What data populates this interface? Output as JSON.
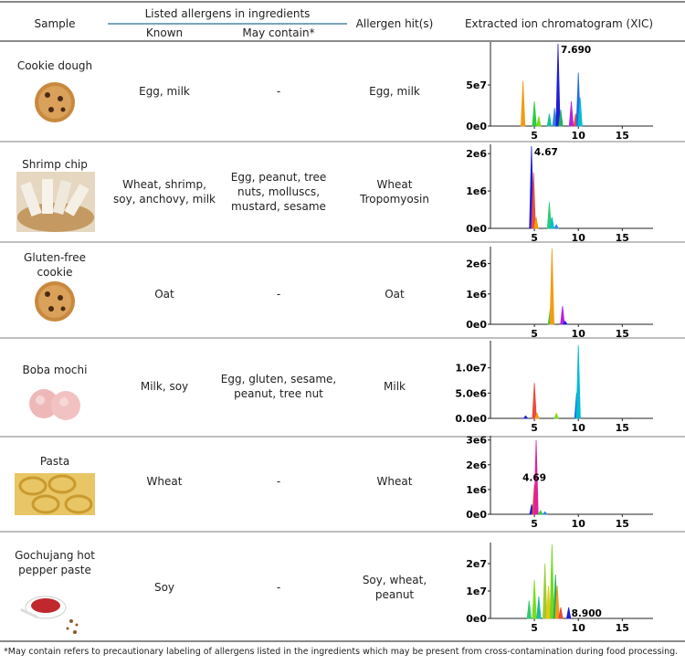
{
  "header": {
    "sample": "Sample",
    "listed": "Listed allergens in ingredients",
    "known": "Known",
    "may": "May contain*",
    "hit": "Allergen hit(s)",
    "xic": "Extracted ion chromatogram (XIC)"
  },
  "rows": [
    {
      "sample": "Cookie dough",
      "known": "Egg, milk",
      "may": "-",
      "hit": "Egg, milk",
      "xic": {
        "type": "chromatogram",
        "xlim": [
          0,
          18.5
        ],
        "xticks": [
          5,
          10,
          15
        ],
        "ylim": [
          0,
          100000000
        ],
        "yticks": [
          {
            "value": 0,
            "label": "0e0"
          },
          {
            "value": 50000000,
            "label": "5e7"
          }
        ],
        "peaks": [
          {
            "x": 3.7,
            "height": 55000000,
            "color": "#f39c12"
          },
          {
            "x": 5.0,
            "height": 30000000,
            "color": "#2ecc40"
          },
          {
            "x": 5.5,
            "height": 12000000,
            "color": "#7ddc1f"
          },
          {
            "x": 6.7,
            "height": 15000000,
            "color": "#1abc9c"
          },
          {
            "x": 7.3,
            "height": 22000000,
            "color": "#2e86de"
          },
          {
            "x": 7.69,
            "height": 100000000,
            "color": "#1f1fd6"
          },
          {
            "x": 8.0,
            "height": 20000000,
            "color": "#27ae60"
          },
          {
            "x": 9.2,
            "height": 30000000,
            "color": "#b620e0"
          },
          {
            "x": 9.7,
            "height": 15000000,
            "color": "#e74c3c"
          },
          {
            "x": 10.0,
            "height": 65000000,
            "color": "#1e6fe0"
          },
          {
            "x": 10.2,
            "height": 35000000,
            "color": "#00bcd4"
          }
        ],
        "annotations": [
          {
            "value": 7.69,
            "label": "7.690"
          }
        ]
      }
    },
    {
      "sample": "Shrimp chip",
      "known": "Wheat, shrimp, soy, anchovy, milk",
      "may": "Egg, peanut, tree nuts, molluscs, mustard, sesame",
      "hit": "Wheat Tropomyosin",
      "xic": {
        "type": "chromatogram",
        "xlim": [
          0,
          18.5
        ],
        "xticks": [
          5,
          10,
          15
        ],
        "ylim": [
          0,
          2200000
        ],
        "yticks": [
          {
            "value": 0,
            "label": "0e0"
          },
          {
            "value": 1000000,
            "label": "1e6"
          },
          {
            "value": 2000000,
            "label": "2e6"
          }
        ],
        "peaks": [
          {
            "x": 4.67,
            "height": 2200000,
            "color": "#1f1fd6"
          },
          {
            "x": 4.9,
            "height": 1500000,
            "color": "#e74c3c"
          },
          {
            "x": 5.2,
            "height": 300000,
            "color": "#f39c12"
          },
          {
            "x": 6.7,
            "height": 700000,
            "color": "#2ecc71"
          },
          {
            "x": 7.0,
            "height": 300000,
            "color": "#00bcd4"
          },
          {
            "x": 7.5,
            "height": 100000,
            "color": "#2e86de"
          }
        ],
        "annotations": [
          {
            "value": 4.67,
            "label": "4.67"
          }
        ]
      }
    },
    {
      "sample": "Gluten-free cookie",
      "known": "Oat",
      "may": "-",
      "hit": "Oat",
      "xic": {
        "type": "chromatogram",
        "xlim": [
          0,
          18.5
        ],
        "xticks": [
          5,
          10,
          15
        ],
        "ylim": [
          0,
          2500000
        ],
        "yticks": [
          {
            "value": 0,
            "label": "0e0"
          },
          {
            "value": 1000000,
            "label": "1e6"
          },
          {
            "value": 2000000,
            "label": "2e6"
          }
        ],
        "peaks": [
          {
            "x": 6.8,
            "height": 500000,
            "color": "#2ecc40"
          },
          {
            "x": 7.0,
            "height": 2500000,
            "color": "#f39c12"
          },
          {
            "x": 8.2,
            "height": 600000,
            "color": "#b620e0"
          },
          {
            "x": 8.5,
            "height": 100000,
            "color": "#1f1fd6"
          }
        ],
        "annotations": []
      }
    },
    {
      "sample": "Boba mochi",
      "known": "Milk, soy",
      "may": "Egg, gluten, sesame, peanut, tree nut",
      "hit": "Milk",
      "xic": {
        "type": "chromatogram",
        "xlim": [
          0,
          18.5
        ],
        "xticks": [
          5,
          10,
          15
        ],
        "ylim": [
          0,
          15000000
        ],
        "yticks": [
          {
            "value": 0,
            "label": "0.0e0"
          },
          {
            "value": 5000000,
            "label": "5.0e6"
          },
          {
            "value": 10000000,
            "label": "1.0e7"
          }
        ],
        "peaks": [
          {
            "x": 4.0,
            "height": 500000,
            "color": "#1f1fd6"
          },
          {
            "x": 5.0,
            "height": 7000000,
            "color": "#e74c3c"
          },
          {
            "x": 5.3,
            "height": 1000000,
            "color": "#f39c12"
          },
          {
            "x": 7.5,
            "height": 1000000,
            "color": "#7ddc1f"
          },
          {
            "x": 9.8,
            "height": 5000000,
            "color": "#1e6fe0"
          },
          {
            "x": 10.0,
            "height": 14500000,
            "color": "#00bcd4"
          }
        ],
        "annotations": []
      }
    },
    {
      "sample": "Pasta",
      "known": "Wheat",
      "may": "-",
      "hit": "Wheat",
      "xic": {
        "type": "chromatogram",
        "xlim": [
          0,
          18.5
        ],
        "xticks": [
          5,
          10,
          15
        ],
        "ylim": [
          0,
          3100000
        ],
        "yticks": [
          {
            "value": 0,
            "label": "0e0"
          },
          {
            "value": 1000000,
            "label": "1e6"
          },
          {
            "value": 2000000,
            "label": "2e6"
          },
          {
            "value": 3000000,
            "label": "3e6"
          }
        ],
        "peaks": [
          {
            "x": 4.69,
            "height": 400000,
            "color": "#1f1fd6"
          },
          {
            "x": 5.0,
            "height": 1200000,
            "color": "#e74c3c"
          },
          {
            "x": 5.2,
            "height": 3000000,
            "color": "#e0209a"
          },
          {
            "x": 5.7,
            "height": 150000,
            "color": "#2ecc40"
          },
          {
            "x": 6.2,
            "height": 100000,
            "color": "#2e86de"
          }
        ],
        "annotations": [
          {
            "value": 4.69,
            "label": "4.69"
          }
        ]
      }
    },
    {
      "sample": "Gochujang hot pepper paste",
      "known": "Soy",
      "may": "-",
      "hit": "Soy, wheat, peanut",
      "xic": {
        "type": "chromatogram",
        "xlim": [
          0,
          18.5
        ],
        "xticks": [
          5,
          10,
          15
        ],
        "ylim": [
          0,
          27000000
        ],
        "yticks": [
          {
            "value": 0,
            "label": "0e0"
          },
          {
            "value": 10000000,
            "label": "1e7"
          },
          {
            "value": 20000000,
            "label": "2e7"
          }
        ],
        "peaks": [
          {
            "x": 4.4,
            "height": 6500000,
            "color": "#2ecc71"
          },
          {
            "x": 5.0,
            "height": 14000000,
            "color": "#7ddc1f"
          },
          {
            "x": 5.5,
            "height": 8000000,
            "color": "#1abc9c"
          },
          {
            "x": 6.2,
            "height": 20000000,
            "color": "#9acd32"
          },
          {
            "x": 6.6,
            "height": 12000000,
            "color": "#f1c40f"
          },
          {
            "x": 7.0,
            "height": 27000000,
            "color": "#6fdc1f"
          },
          {
            "x": 7.4,
            "height": 16000000,
            "color": "#27ae60"
          },
          {
            "x": 7.6,
            "height": 12000000,
            "color": "#f39c12"
          },
          {
            "x": 8.0,
            "height": 4000000,
            "color": "#e74c3c"
          },
          {
            "x": 8.9,
            "height": 4000000,
            "color": "#1f1fd6"
          }
        ],
        "annotations": [
          {
            "value": 8.9,
            "label": "8.900"
          }
        ]
      }
    }
  ],
  "footnote": "*May contain refers to precautionary labeling of allergens listed in the ingredients which may be present from cross-contamination during food processing."
}
